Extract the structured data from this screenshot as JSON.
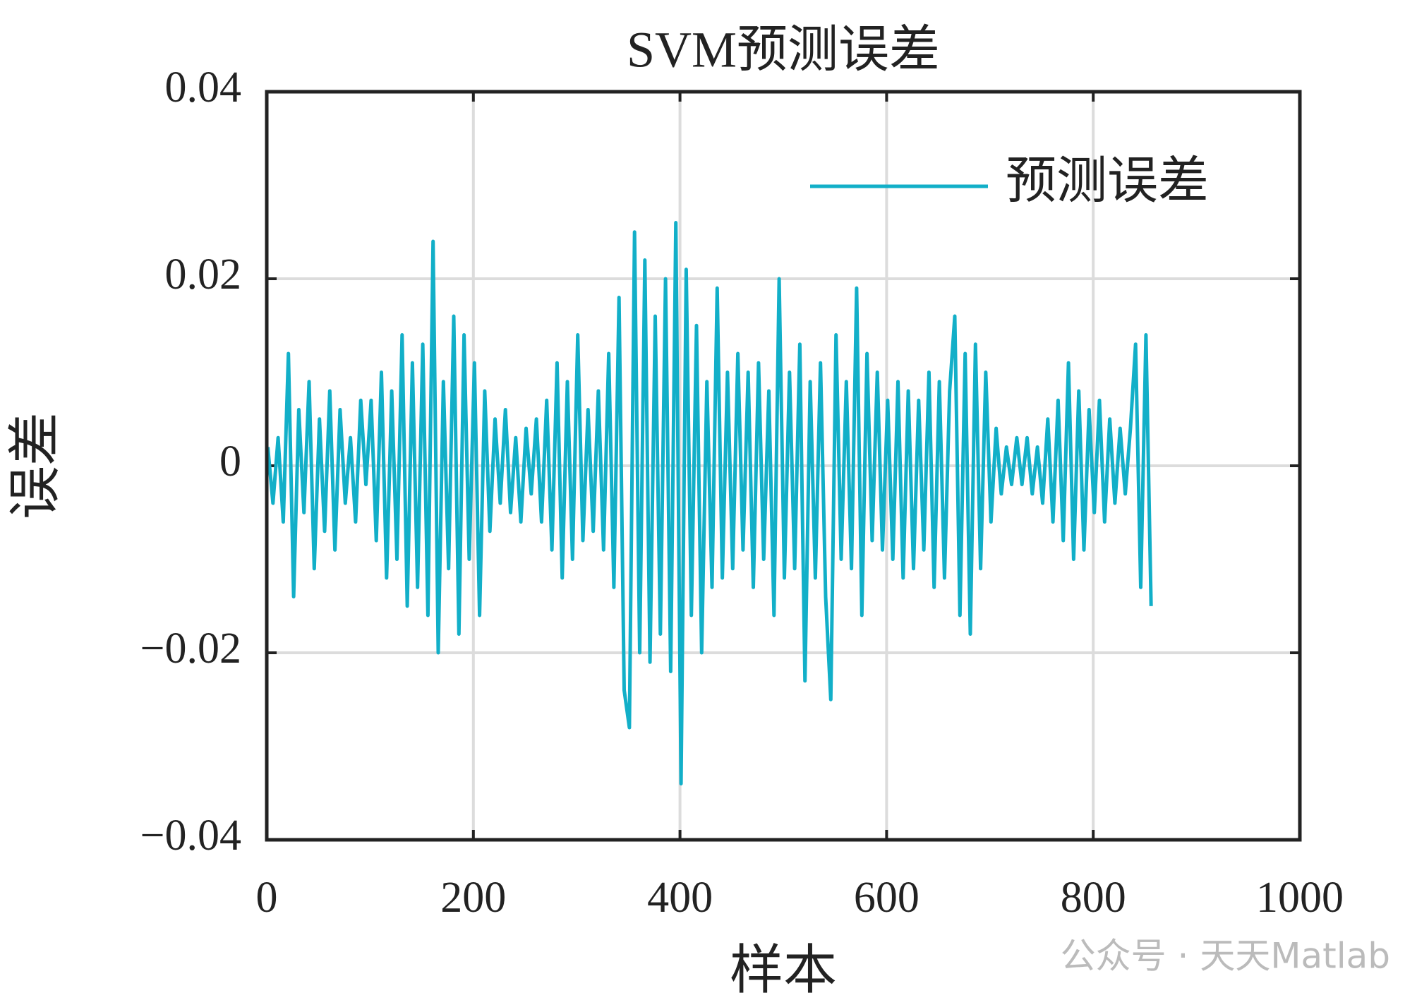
{
  "chart_data": {
    "type": "line",
    "title": "SVM预测误差",
    "xlabel": "样本",
    "ylabel": "误差",
    "watermark": "公众号 · 天天Matlab",
    "xlim": [
      0,
      1000
    ],
    "xticks": [
      0,
      200,
      400,
      600,
      800,
      1000
    ],
    "ylim": [
      -0.04,
      0.04
    ],
    "yticks": [
      {
        "value": -0.04,
        "label": "−0.04"
      },
      {
        "value": -0.02,
        "label": "−0.02"
      },
      0,
      0.02,
      0.04
    ],
    "grid": true,
    "legend": "upper right",
    "x": [
      1,
      6,
      11,
      16,
      21,
      26,
      31,
      36,
      41,
      46,
      51,
      56,
      61,
      66,
      71,
      76,
      81,
      86,
      91,
      96,
      101,
      106,
      111,
      116,
      121,
      126,
      131,
      136,
      141,
      146,
      151,
      156,
      161,
      166,
      171,
      176,
      181,
      186,
      191,
      196,
      201,
      206,
      211,
      216,
      221,
      226,
      231,
      236,
      241,
      246,
      251,
      256,
      261,
      266,
      271,
      276,
      281,
      286,
      291,
      296,
      301,
      306,
      311,
      316,
      321,
      326,
      331,
      336,
      341,
      346,
      351,
      356,
      361,
      366,
      371,
      376,
      381,
      386,
      391,
      396,
      401,
      406,
      411,
      416,
      421,
      426,
      431,
      436,
      441,
      446,
      451,
      456,
      461,
      466,
      471,
      476,
      481,
      486,
      491,
      496,
      501,
      506,
      511,
      516,
      521,
      526,
      531,
      536,
      541,
      546,
      551,
      556,
      561,
      566,
      571,
      576,
      581,
      586,
      591,
      596,
      601,
      606,
      611,
      616,
      621,
      626,
      631,
      636,
      641,
      646,
      651,
      656,
      661,
      666,
      671,
      676,
      681,
      686,
      691,
      696,
      701,
      706,
      711,
      716,
      721,
      726,
      731,
      736,
      741,
      746,
      751,
      756,
      761,
      766,
      771,
      776,
      781,
      786,
      791,
      796,
      801,
      806,
      811,
      816,
      821,
      826,
      831,
      836,
      841,
      846,
      851,
      856
    ],
    "series": [
      {
        "name": "预测误差",
        "color": "#12afc8",
        "values": [
          0.002,
          -0.004,
          0.003,
          -0.006,
          0.012,
          -0.014,
          0.006,
          -0.005,
          0.009,
          -0.011,
          0.005,
          -0.007,
          0.008,
          -0.009,
          0.006,
          -0.004,
          0.003,
          -0.006,
          0.007,
          -0.002,
          0.007,
          -0.008,
          0.01,
          -0.012,
          0.008,
          -0.01,
          0.014,
          -0.015,
          0.011,
          -0.013,
          0.013,
          -0.016,
          0.024,
          -0.02,
          0.009,
          -0.011,
          0.016,
          -0.018,
          0.014,
          -0.01,
          0.011,
          -0.016,
          0.008,
          -0.007,
          0.005,
          -0.004,
          0.006,
          -0.005,
          0.003,
          -0.006,
          0.004,
          -0.003,
          0.005,
          -0.006,
          0.007,
          -0.009,
          0.011,
          -0.012,
          0.009,
          -0.01,
          0.014,
          -0.008,
          0.006,
          -0.007,
          0.008,
          -0.009,
          0.012,
          -0.013,
          0.018,
          -0.024,
          -0.028,
          0.025,
          -0.02,
          0.022,
          -0.021,
          0.016,
          -0.018,
          0.02,
          -0.022,
          0.026,
          -0.034,
          0.021,
          -0.016,
          0.015,
          -0.02,
          0.009,
          -0.013,
          0.019,
          -0.012,
          0.01,
          -0.011,
          0.012,
          -0.009,
          0.01,
          -0.013,
          0.011,
          -0.01,
          0.008,
          -0.016,
          0.02,
          -0.012,
          0.01,
          -0.011,
          0.013,
          -0.023,
          0.009,
          -0.012,
          0.011,
          -0.014,
          -0.025,
          0.014,
          -0.01,
          0.009,
          -0.011,
          0.019,
          -0.016,
          0.012,
          -0.008,
          0.01,
          -0.009,
          0.007,
          -0.01,
          0.009,
          -0.012,
          0.008,
          -0.011,
          0.007,
          -0.009,
          0.01,
          -0.013,
          0.009,
          -0.012,
          0.008,
          0.016,
          -0.016,
          0.012,
          -0.018,
          0.013,
          -0.011,
          0.01,
          -0.006,
          0.004,
          -0.003,
          0.002,
          -0.002,
          0.003,
          -0.002,
          0.003,
          -0.003,
          0.002,
          -0.004,
          0.005,
          -0.006,
          0.007,
          -0.008,
          0.011,
          -0.01,
          0.008,
          -0.009,
          0.006,
          -0.005,
          0.007,
          -0.006,
          0.005,
          -0.004,
          0.004,
          -0.003,
          0.004,
          0.013,
          -0.013,
          0.014,
          -0.015
        ]
      }
    ]
  }
}
